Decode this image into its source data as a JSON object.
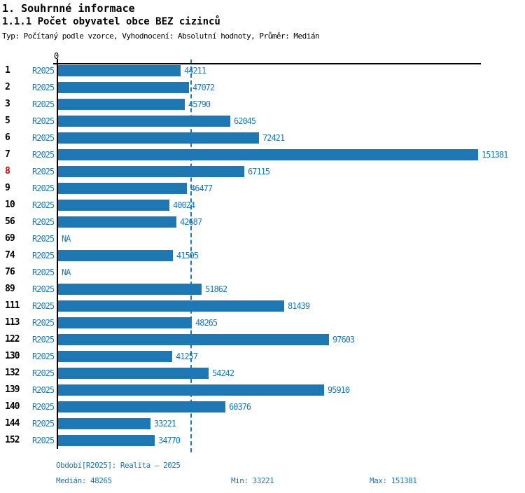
{
  "title": "1. Souhrnné informace",
  "subtitle": "1.1.1 Počet obyvatel obce BEZ cizinců",
  "meta_line": "Typ: Počítaný podle vzorce, Vyhodnocení: Absolutní hodnoty, Průměr: Medián",
  "colors": {
    "accent_blue": "#1f77b4",
    "highlight_red": "#dd0000",
    "axis_black": "#000000"
  },
  "chart_data": {
    "type": "bar",
    "orientation": "horizontal",
    "title": "1.1.1 Počet obyvatel obce BEZ cizinců",
    "series_label": "R2025",
    "axis_zero_label": "0",
    "na_label": "NA",
    "categories": [
      "1",
      "2",
      "3",
      "5",
      "6",
      "7",
      "8",
      "9",
      "10",
      "56",
      "69",
      "74",
      "76",
      "89",
      "111",
      "113",
      "122",
      "130",
      "132",
      "139",
      "140",
      "144",
      "152"
    ],
    "values": [
      44211,
      47072,
      45790,
      62045,
      72421,
      151381,
      67115,
      46477,
      40024,
      42687,
      null,
      41505,
      null,
      51862,
      81439,
      48265,
      97603,
      41257,
      54242,
      95910,
      60376,
      33221,
      34770
    ],
    "highlighted_category": "8",
    "median_line_value": 48265,
    "xlim": [
      0,
      152700
    ],
    "grid": "median-line-only",
    "legend_position": "none"
  },
  "footer": {
    "period_line": "Období[R2025]: Realita – 2025",
    "median_label": "Medián: 48265",
    "min_label": "Min: 33221",
    "max_label": "Max: 151381"
  }
}
